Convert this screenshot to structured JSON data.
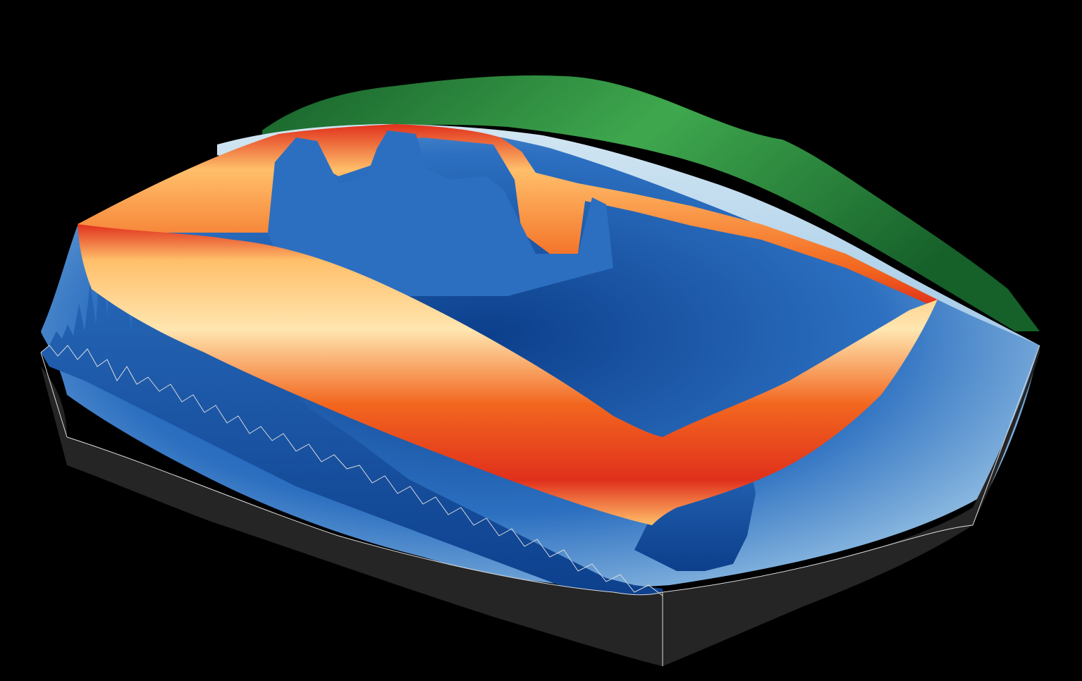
{
  "scene": {
    "kind": "3d-ocean-bathymetry-visualization",
    "background_color": "#000000",
    "colors": {
      "land_dark": "#16602a",
      "land_light": "#3fa84e",
      "shelf_light": "#d2e6f2",
      "seafloor_deep": "#0c3f8c",
      "seafloor_mid": "#2c6fc0",
      "seafloor_light": "#9cc6e6",
      "curtain_deep": "#e0301c",
      "curtain_mid": "#f2661e",
      "curtain_light": "#ffbf6a",
      "curtain_pale": "#ffe6b0",
      "block_side": "#252525",
      "block_edge": "#dcdcdc"
    }
  }
}
